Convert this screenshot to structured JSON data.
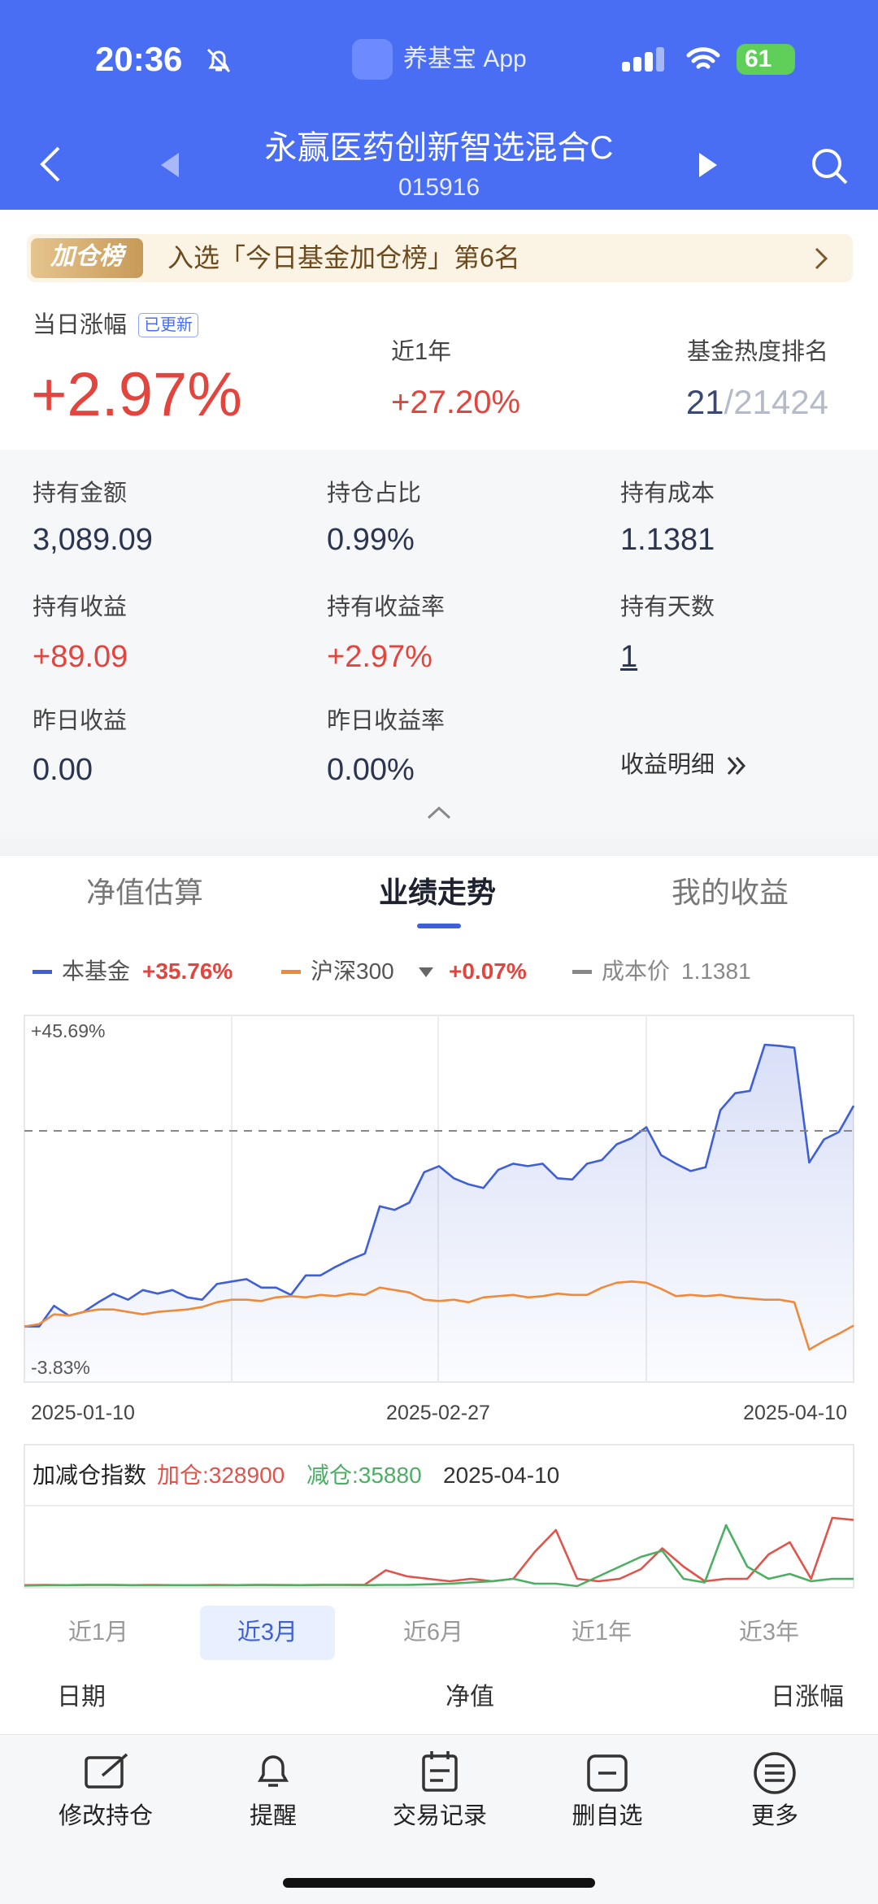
{
  "status_bar": {
    "time": "20:36",
    "app": "养基宝 App",
    "battery": "61"
  },
  "header": {
    "title": "永赢医药创新智选混合C",
    "code": "015916"
  },
  "banner": {
    "badge": "加仓榜",
    "text": "入选「今日基金加仓榜」第6名"
  },
  "summary": {
    "day_change_label": "当日涨幅",
    "updated_badge": "已更新",
    "day_change": "+2.97%",
    "year_label": "近1年",
    "year_change": "+27.20%",
    "rank_label": "基金热度排名",
    "rank": "21",
    "rank_total": "/21424"
  },
  "holdings": [
    {
      "label": "持有金额",
      "value": "3,089.09"
    },
    {
      "label": "持仓占比",
      "value": "0.99%"
    },
    {
      "label": "持有成本",
      "value": "1.1381"
    },
    {
      "label": "持有收益",
      "value": "+89.09"
    },
    {
      "label": "持有收益率",
      "value": "+2.97%"
    },
    {
      "label": "持有天数",
      "value": "1"
    },
    {
      "label": "昨日收益",
      "value": "0.00"
    },
    {
      "label": "昨日收益率",
      "value": "0.00%"
    }
  ],
  "income_detail": "收益明细",
  "tabs": [
    "净值估算",
    "业绩走势",
    "我的收益"
  ],
  "chart_data": [
    {
      "type": "line",
      "series": [
        {
          "name": "本基金",
          "color": "#3f5fd6",
          "legend_value": "+35.76%",
          "values": [
            -0.08,
            -0.08,
            3.27,
            1.69,
            2.29,
            3.86,
            5.25,
            4.26,
            5.84,
            5.25,
            5.84,
            4.65,
            4.26,
            6.82,
            7.22,
            7.61,
            6.23,
            6.23,
            5.05,
            8.21,
            8.21,
            9.59,
            10.77,
            11.76,
            19.45,
            18.86,
            20.04,
            24.98,
            25.96,
            23.99,
            23.0,
            22.41,
            25.37,
            26.36,
            25.96,
            26.36,
            23.99,
            23.79,
            26.36,
            26.95,
            29.51,
            30.5,
            32.28,
            27.74,
            26.36,
            25.17,
            25.77,
            35.04,
            37.8,
            38.19,
            45.69,
            45.5,
            45.2,
            26.55,
            30.3,
            31.49,
            35.76
          ]
        },
        {
          "name": "沪深300",
          "color": "#ee8a3c",
          "legend_value": "+0.07%",
          "values": [
            -0.08,
            0.31,
            1.89,
            1.69,
            2.29,
            2.68,
            2.68,
            2.29,
            1.89,
            2.29,
            2.48,
            2.68,
            3.08,
            3.86,
            4.26,
            4.26,
            4.06,
            4.65,
            4.85,
            4.65,
            5.05,
            4.85,
            5.25,
            5.05,
            6.23,
            5.84,
            5.44,
            4.26,
            4.06,
            4.26,
            3.86,
            4.65,
            4.85,
            5.05,
            4.65,
            4.85,
            5.25,
            5.05,
            5.05,
            6.23,
            7.02,
            7.22,
            7.02,
            6.04,
            4.85,
            5.05,
            4.85,
            5.05,
            4.65,
            4.46,
            4.26,
            4.26,
            3.86,
            -3.83,
            -2.45,
            -1.27,
            0.07
          ]
        }
      ],
      "reference_line": {
        "name": "成本价",
        "price": "1.1381",
        "y": 31.7
      },
      "ylim": [
        -3.83,
        45.69
      ],
      "yticks": [
        {
          "value": 45.69,
          "label": "+45.69%"
        },
        {
          "value": -3.83,
          "label": "-3.83%"
        }
      ],
      "x_labels": [
        "2025-01-10",
        "2025-02-27",
        "2025-04-10"
      ]
    },
    {
      "type": "line",
      "title": "加减仓指数",
      "date": "2025-04-10",
      "ylim": [
        0,
        400000
      ],
      "series": [
        {
          "label": "加仓:328900",
          "color": "#e0544b",
          "values": [
            5000,
            6000,
            5000,
            6000,
            6000,
            5000,
            6000,
            5000,
            5000,
            6000,
            5000,
            6000,
            6000,
            5000,
            6000,
            6000,
            7000,
            78800,
            48500,
            36400,
            24200,
            36400,
            24200,
            36400,
            169700,
            278800,
            36400,
            24200,
            36400,
            84900,
            187900,
            97000,
            24200,
            36400,
            36400,
            157600,
            218200,
            36400,
            339400,
            328900
          ]
        },
        {
          "label": "减仓:35880",
          "color": "#4caf63",
          "values": [
            3000,
            4000,
            5000,
            6000,
            6000,
            5000,
            4000,
            5000,
            5000,
            4000,
            5000,
            6000,
            5000,
            5000,
            6000,
            6000,
            5000,
            6000,
            6000,
            9000,
            12100,
            18200,
            24200,
            36400,
            12100,
            12100,
            0,
            48500,
            97000,
            145500,
            175800,
            36400,
            18200,
            303000,
            97000,
            36400,
            60600,
            24200,
            36400,
            35880
          ]
        }
      ]
    }
  ],
  "periods": [
    "近1月",
    "近3月",
    "近6月",
    "近1年",
    "近3年"
  ],
  "table_header": [
    "日期",
    "净值",
    "日涨幅"
  ],
  "nav": [
    "修改持仓",
    "提醒",
    "交易记录",
    "删自选",
    "更多"
  ]
}
